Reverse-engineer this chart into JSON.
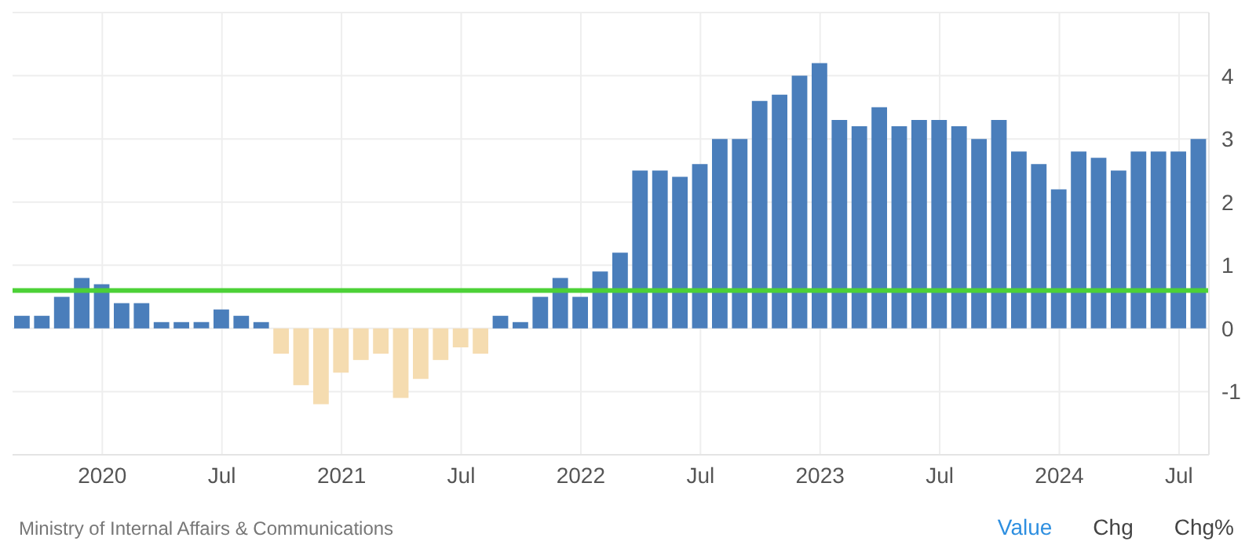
{
  "chart_data": {
    "type": "bar",
    "categories": [
      null,
      null,
      null,
      null,
      "2020",
      null,
      null,
      null,
      null,
      null,
      "Jul",
      null,
      null,
      null,
      null,
      null,
      "2021",
      null,
      null,
      null,
      null,
      null,
      "Jul",
      null,
      null,
      null,
      null,
      null,
      "2022",
      null,
      null,
      null,
      null,
      null,
      "Jul",
      null,
      null,
      null,
      null,
      null,
      "2023",
      null,
      null,
      null,
      null,
      null,
      "Jul",
      null,
      null,
      null,
      null,
      null,
      "2024",
      null,
      null,
      null,
      null,
      null,
      "Jul",
      null
    ],
    "values": [
      0.2,
      0.2,
      0.5,
      0.8,
      0.7,
      0.4,
      0.4,
      0.1,
      0.1,
      0.1,
      0.3,
      0.2,
      0.1,
      -0.4,
      -0.9,
      -1.2,
      -0.7,
      -0.5,
      -0.4,
      -1.1,
      -0.8,
      -0.5,
      -0.3,
      -0.4,
      0.2,
      0.1,
      0.5,
      0.8,
      0.5,
      0.9,
      1.2,
      2.5,
      2.5,
      2.4,
      2.6,
      3.0,
      3.0,
      3.6,
      3.7,
      4.0,
      4.2,
      3.3,
      3.2,
      3.5,
      3.2,
      3.3,
      3.3,
      3.2,
      3.0,
      3.3,
      2.8,
      2.6,
      2.2,
      2.8,
      2.7,
      2.5,
      2.8,
      2.8,
      2.8,
      3.0
    ],
    "colors": [
      "#4a7ebb",
      "#4a7ebb",
      "#4a7ebb",
      "#4a7ebb",
      "#4a7ebb",
      "#4a7ebb",
      "#4a7ebb",
      "#4a7ebb",
      "#4a7ebb",
      "#4a7ebb",
      "#4a7ebb",
      "#4a7ebb",
      "#4a7ebb",
      "#f5dcb0",
      "#f5dcb0",
      "#f5dcb0",
      "#f5dcb0",
      "#f5dcb0",
      "#f5dcb0",
      "#f5dcb0",
      "#f5dcb0",
      "#f5dcb0",
      "#f5dcb0",
      "#f5dcb0",
      "#4a7ebb",
      "#4a7ebb",
      "#4a7ebb",
      "#4a7ebb",
      "#4a7ebb",
      "#4a7ebb",
      "#4a7ebb",
      "#4a7ebb",
      "#4a7ebb",
      "#4a7ebb",
      "#4a7ebb",
      "#4a7ebb",
      "#4a7ebb",
      "#4a7ebb",
      "#4a7ebb",
      "#4a7ebb",
      "#4a7ebb",
      "#4a7ebb",
      "#4a7ebb",
      "#4a7ebb",
      "#4a7ebb",
      "#4a7ebb",
      "#4a7ebb",
      "#4a7ebb",
      "#4a7ebb",
      "#4a7ebb",
      "#4a7ebb",
      "#4a7ebb",
      "#4a7ebb",
      "#4a7ebb",
      "#4a7ebb",
      "#4a7ebb",
      "#4a7ebb",
      "#4a7ebb",
      "#4a7ebb",
      "#4a7ebb"
    ],
    "ylim": [
      -2,
      5
    ],
    "yticks": [
      -1,
      0,
      1,
      2,
      3,
      4
    ],
    "grid": true,
    "ref_lines": [
      {
        "axis": "y",
        "value": 0.6,
        "color": "#4cd137"
      }
    ],
    "annotations": [
      "Ministry of Internal Affairs & Communications",
      "Value",
      "Chg",
      "Chg%"
    ]
  }
}
